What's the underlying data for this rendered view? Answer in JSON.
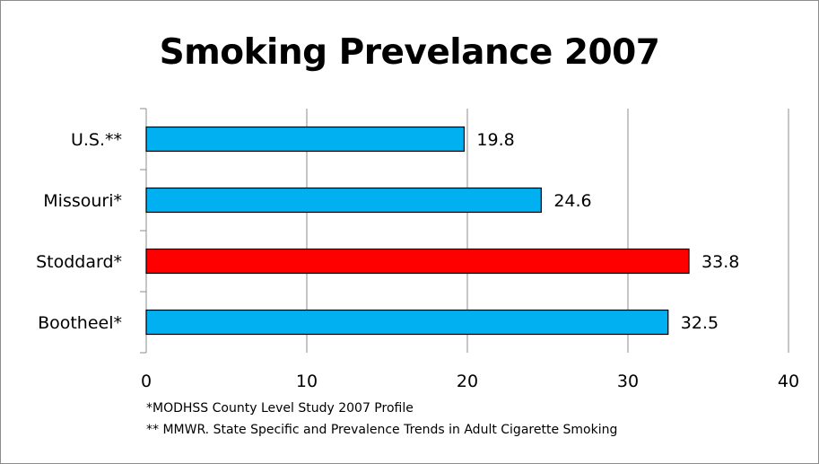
{
  "chart_data": {
    "type": "bar",
    "orientation": "horizontal",
    "title": "Smoking Prevelance 2007",
    "categories": [
      "U.S.**",
      "Missouri*",
      "Stoddard*",
      "Bootheel*"
    ],
    "values": [
      19.8,
      24.6,
      33.8,
      32.5
    ],
    "data_labels": [
      "19.8",
      "24.6",
      "33.8",
      "32.5"
    ],
    "bar_colors": [
      "#00b0f0",
      "#00b0f0",
      "#ff0000",
      "#00b0f0"
    ],
    "xlim": [
      0,
      40
    ],
    "xticks": [
      0,
      10,
      20,
      30,
      40
    ],
    "xlabel": "",
    "ylabel": "",
    "grid": "vertical",
    "legend": "none"
  },
  "footnotes": [
    "*MODHSS County Level Study 2007 Profile",
    "** MMWR. State Specific and Prevalence Trends in Adult Cigarette Smoking"
  ]
}
